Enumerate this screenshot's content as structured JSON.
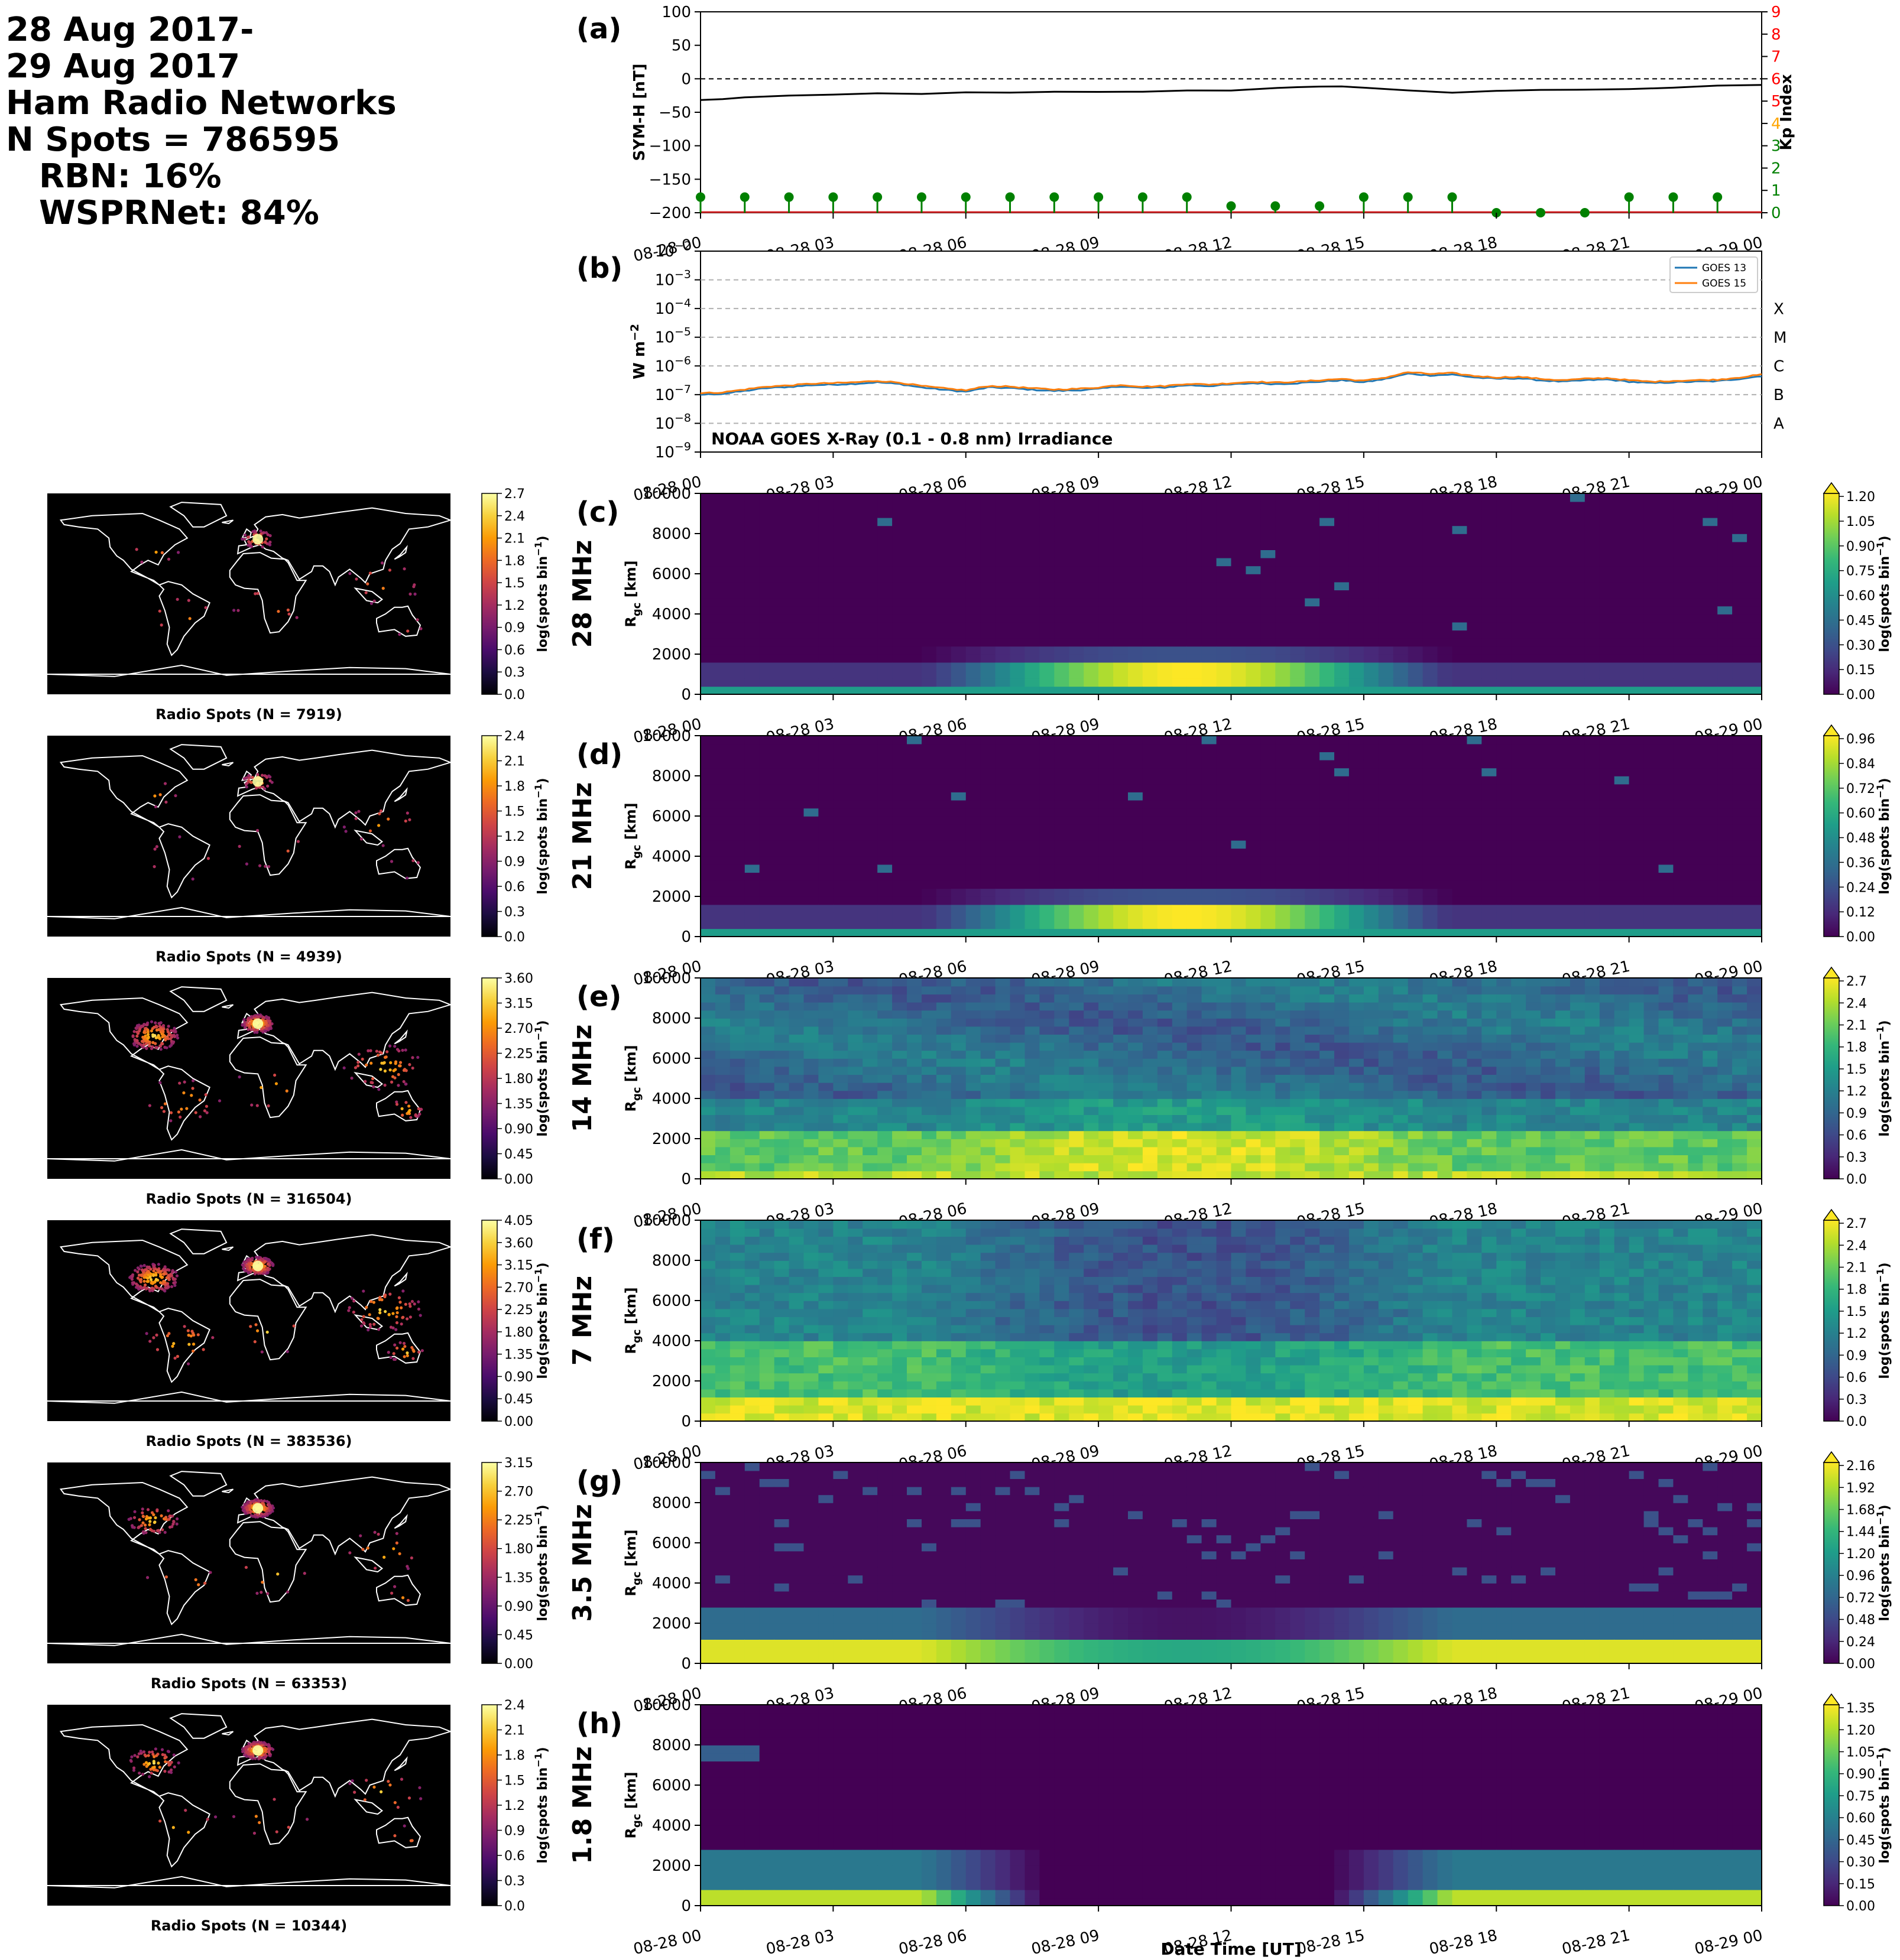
{
  "summary": {
    "line1": "28 Aug 2017-",
    "line2": "29 Aug 2017",
    "line3": "Ham Radio Networks",
    "line4": "N Spots = 786595",
    "line5": "RBN: 16%",
    "line6": "WSPRNet: 84%"
  },
  "time_ticks": [
    "08-28 00",
    "08-28 03",
    "08-28 06",
    "08-28 09",
    "08-28 12",
    "08-28 15",
    "08-28 18",
    "08-28 21",
    "08-29 00"
  ],
  "xlabel": "Date Time [UT]",
  "chart_data": [
    {
      "id": "a",
      "type": "line",
      "panel_label": "(a)",
      "ylabel": "SYM-H [nT]",
      "ylim": [
        -200,
        100
      ],
      "yticks": [
        "100",
        "50",
        "0",
        "−50",
        "−100",
        "−150",
        "−200"
      ],
      "y2label": "Kp Index",
      "y2lim": [
        0,
        9
      ],
      "y2ticks": [
        "0",
        "1",
        "2",
        "3",
        "4",
        "5",
        "6",
        "7",
        "8",
        "9"
      ],
      "y2tick_colors": [
        "#008000",
        "#008000",
        "#008000",
        "#008000",
        "#ffa500",
        "#ff0000",
        "#ff0000",
        "#ff0000",
        "#ff0000",
        "#ff0000"
      ],
      "xrange_hours": [
        0,
        24
      ],
      "symh": {
        "x_hours": [
          0,
          0.5,
          1,
          2,
          3,
          4,
          5,
          6,
          7,
          8,
          9,
          10,
          11,
          12,
          13,
          13.5,
          14,
          14.5,
          15,
          16,
          17,
          18,
          19,
          20,
          21,
          22,
          23,
          24
        ],
        "y": [
          -32,
          -30,
          -28,
          -26,
          -24,
          -22,
          -22,
          -21,
          -21,
          -20,
          -20,
          -19,
          -18,
          -17,
          -14,
          -12,
          -11,
          -12,
          -14,
          -18,
          -20,
          -18,
          -17,
          -16,
          -15,
          -13,
          -11,
          -10
        ]
      },
      "kp": {
        "x_hours": [
          0,
          1,
          2,
          3,
          4,
          5,
          6,
          7,
          8,
          9,
          10,
          11,
          12,
          13,
          14,
          15,
          16,
          17,
          18,
          19,
          20,
          21,
          22,
          23
        ],
        "values": [
          0.7,
          0.7,
          0.7,
          0.7,
          0.7,
          0.7,
          0.7,
          0.7,
          0.7,
          0.7,
          0.7,
          0.7,
          0.3,
          0.3,
          0.3,
          0.7,
          0.7,
          0.7,
          0.0,
          0.0,
          0.0,
          0.7,
          0.7,
          0.7
        ]
      },
      "colors": {
        "symh": "#000000",
        "kp": "#008000"
      }
    },
    {
      "id": "b",
      "type": "line",
      "panel_label": "(b)",
      "ylabel": "W m",
      "ylabel_sup": "−2",
      "yscale": "log",
      "ylim_exp": [
        -9,
        -2
      ],
      "ytick_exponents": [
        "−2",
        "−3",
        "−4",
        "−5",
        "−6",
        "−7",
        "−8",
        "−9"
      ],
      "flare_classes": [
        "X",
        "M",
        "C",
        "B",
        "A"
      ],
      "annotation": "NOAA GOES X-Ray (0.1 - 0.8 nm) Irradiance",
      "legend": [
        "GOES 13",
        "GOES 15"
      ],
      "legend_position": "upper-right",
      "colors": {
        "goes13": "#1f77b4",
        "goes15": "#ff7f0e"
      },
      "x_hours": [
        0,
        0.5,
        1,
        1.5,
        2,
        2.5,
        3,
        3.5,
        4,
        4.5,
        5,
        5.5,
        6,
        6.5,
        7,
        7.5,
        8,
        8.5,
        9,
        9.5,
        10,
        10.5,
        11,
        11.5,
        12,
        12.5,
        13,
        13.5,
        14,
        14.5,
        15,
        15.5,
        16,
        16.5,
        17,
        17.5,
        18,
        18.5,
        19,
        19.5,
        20,
        20.5,
        21,
        21.5,
        22,
        22.5,
        23,
        23.5,
        24
      ],
      "goes15_log10": [
        -6.95,
        -6.92,
        -6.82,
        -6.72,
        -6.68,
        -6.62,
        -6.6,
        -6.57,
        -6.52,
        -6.58,
        -6.7,
        -6.78,
        -6.85,
        -6.7,
        -6.72,
        -6.78,
        -6.82,
        -6.8,
        -6.75,
        -6.66,
        -6.72,
        -6.7,
        -6.62,
        -6.65,
        -6.6,
        -6.55,
        -6.58,
        -6.55,
        -6.5,
        -6.45,
        -6.52,
        -6.4,
        -6.22,
        -6.28,
        -6.25,
        -6.35,
        -6.4,
        -6.38,
        -6.45,
        -6.5,
        -6.45,
        -6.42,
        -6.5,
        -6.55,
        -6.52,
        -6.5,
        -6.48,
        -6.4,
        -6.3
      ],
      "goes13_log10": [
        -7.0,
        -6.97,
        -6.87,
        -6.77,
        -6.73,
        -6.67,
        -6.65,
        -6.62,
        -6.57,
        -6.63,
        -6.75,
        -6.83,
        -6.9,
        -6.75,
        -6.77,
        -6.83,
        -6.87,
        -6.85,
        -6.8,
        -6.71,
        -6.77,
        -6.75,
        -6.67,
        -6.7,
        -6.65,
        -6.6,
        -6.63,
        -6.6,
        -6.55,
        -6.5,
        -6.57,
        -6.45,
        -6.27,
        -6.33,
        -6.3,
        -6.4,
        -6.45,
        -6.43,
        -6.5,
        -6.55,
        -6.5,
        -6.47,
        -6.55,
        -6.6,
        -6.57,
        -6.55,
        -6.53,
        -6.45,
        -6.35
      ]
    }
  ],
  "bands": [
    {
      "id": "c",
      "panel_label": "(c)",
      "band": "28 MHz",
      "map_caption": "Radio Spots (N = 7919)",
      "map_cbar_ticks": [
        "2.7",
        "2.4",
        "2.1",
        "1.8",
        "1.5",
        "1.2",
        "0.9",
        "0.6",
        "0.3",
        "0.0"
      ],
      "heat_cbar_ticks": [
        "1.20",
        "1.05",
        "0.90",
        "0.75",
        "0.60",
        "0.45",
        "0.30",
        "0.15",
        "0.00"
      ],
      "activity": "low"
    },
    {
      "id": "d",
      "panel_label": "(d)",
      "band": "21 MHz",
      "map_caption": "Radio Spots (N = 4939)",
      "map_cbar_ticks": [
        "2.4",
        "2.1",
        "1.8",
        "1.5",
        "1.2",
        "0.9",
        "0.6",
        "0.3",
        "0.0"
      ],
      "heat_cbar_ticks": [
        "0.96",
        "0.84",
        "0.72",
        "0.60",
        "0.48",
        "0.36",
        "0.24",
        "0.12",
        "0.00"
      ],
      "activity": "low"
    },
    {
      "id": "e",
      "panel_label": "(e)",
      "band": "14 MHz",
      "map_caption": "Radio Spots (N = 316504)",
      "map_cbar_ticks": [
        "3.60",
        "3.15",
        "2.70",
        "2.25",
        "1.80",
        "1.35",
        "0.90",
        "0.45",
        "0.00"
      ],
      "heat_cbar_ticks": [
        "2.7",
        "2.4",
        "2.1",
        "1.8",
        "1.5",
        "1.2",
        "0.9",
        "0.6",
        "0.3",
        "0.0"
      ],
      "activity": "high"
    },
    {
      "id": "f",
      "panel_label": "(f)",
      "band": "7 MHz",
      "map_caption": "Radio Spots (N = 383536)",
      "map_cbar_ticks": [
        "4.05",
        "3.60",
        "3.15",
        "2.70",
        "2.25",
        "1.80",
        "1.35",
        "0.90",
        "0.45",
        "0.00"
      ],
      "heat_cbar_ticks": [
        "2.7",
        "2.4",
        "2.1",
        "1.8",
        "1.5",
        "1.2",
        "0.9",
        "0.6",
        "0.3",
        "0.0"
      ],
      "activity": "high"
    },
    {
      "id": "g",
      "panel_label": "(g)",
      "band": "3.5 MHz",
      "map_caption": "Radio Spots (N = 63353)",
      "map_cbar_ticks": [
        "3.15",
        "2.70",
        "2.25",
        "1.80",
        "1.35",
        "0.90",
        "0.45",
        "0.00"
      ],
      "heat_cbar_ticks": [
        "2.16",
        "1.92",
        "1.68",
        "1.44",
        "1.20",
        "0.96",
        "0.72",
        "0.48",
        "0.24",
        "0.00"
      ],
      "activity": "medium"
    },
    {
      "id": "h",
      "panel_label": "(h)",
      "band": "1.8 MHz",
      "map_caption": "Radio Spots (N = 10344)",
      "map_cbar_ticks": [
        "2.4",
        "2.1",
        "1.8",
        "1.5",
        "1.2",
        "0.9",
        "0.6",
        "0.3",
        "0.0"
      ],
      "heat_cbar_ticks": [
        "1.35",
        "1.20",
        "1.05",
        "0.90",
        "0.75",
        "0.60",
        "0.45",
        "0.30",
        "0.15",
        "0.00"
      ],
      "activity": "medium"
    }
  ],
  "heat_yticks": [
    "10000",
    "8000",
    "6000",
    "4000",
    "2000",
    "0"
  ],
  "heat_ylabel": "R",
  "heat_ylabel_sub": "gc",
  "heat_ylabel_unit": " [km]",
  "cbar_label": "log(spots bin",
  "cbar_label_sup": "−1",
  "cbar_label_end": ")",
  "colormaps": {
    "viridis": [
      "#440154",
      "#482878",
      "#3e4a89",
      "#31688e",
      "#26828e",
      "#1f9e89",
      "#35b779",
      "#6ece58",
      "#b5de2b",
      "#fde725"
    ],
    "inferno": [
      "#000004",
      "#1b0c41",
      "#4a0c6b",
      "#781c6d",
      "#a52c60",
      "#cf4446",
      "#ed6925",
      "#fb9b06",
      "#f7d13d",
      "#fcffa4"
    ]
  }
}
